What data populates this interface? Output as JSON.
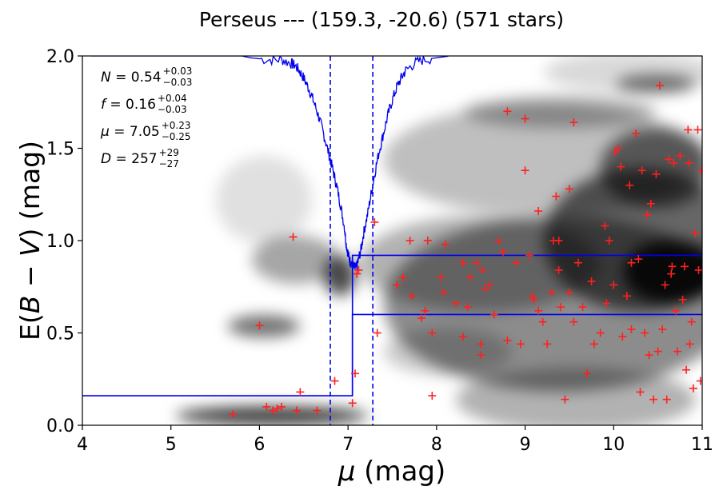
{
  "chart_data": {
    "type": "scatter",
    "title": "Perseus --- (159.3, -20.6) (571 stars)",
    "xlabel_sym": "μ",
    "xlabel_unit": " (mag)",
    "ylabel_pre": "E(",
    "ylabel_sym": "B − V",
    "ylabel_post": ") (mag)",
    "xlim": [
      4,
      11
    ],
    "ylim": [
      0,
      2
    ],
    "xticks": [
      4,
      5,
      6,
      7,
      8,
      9,
      10,
      11
    ],
    "yticks": [
      0.0,
      0.5,
      1.0,
      1.5,
      2.0
    ],
    "ytick_labels": [
      "0.0",
      "0.5",
      "1.0",
      "1.5",
      "2.0"
    ],
    "annotations": [
      {
        "sym": "N",
        "value": "0.54",
        "sup": "+0.03",
        "sub": "−0.03"
      },
      {
        "sym": "f",
        "value": "0.16",
        "sup": "+0.04",
        "sub": "−0.03"
      },
      {
        "sym": "μ",
        "value": "7.05",
        "sup": "+0.23",
        "sub": "−0.25"
      },
      {
        "sym": "D",
        "value": "257",
        "sup": "+29",
        "sub": "−27"
      }
    ],
    "colors": {
      "stars": "#ff2020",
      "model": "#0000ee",
      "background": "#000000"
    },
    "reddening_step": {
      "mu": 7.05,
      "foreground": 0.16,
      "background_low": 0.6,
      "background_high": 0.92
    },
    "mu_bounds": [
      6.8,
      7.28
    ],
    "stars": [
      [
        5.7,
        0.06
      ],
      [
        6.0,
        0.54
      ],
      [
        6.08,
        0.1
      ],
      [
        6.15,
        0.08
      ],
      [
        6.2,
        0.09
      ],
      [
        6.25,
        0.1
      ],
      [
        6.38,
        1.02
      ],
      [
        6.42,
        0.08
      ],
      [
        6.46,
        0.18
      ],
      [
        6.65,
        0.08
      ],
      [
        6.85,
        0.24
      ],
      [
        7.05,
        0.12
      ],
      [
        7.08,
        0.28
      ],
      [
        7.1,
        0.82
      ],
      [
        7.12,
        0.84
      ],
      [
        7.3,
        1.1
      ],
      [
        7.33,
        0.5
      ],
      [
        7.55,
        0.76
      ],
      [
        7.62,
        0.8
      ],
      [
        7.7,
        1.0
      ],
      [
        7.72,
        0.7
      ],
      [
        7.83,
        0.58
      ],
      [
        7.87,
        0.62
      ],
      [
        7.9,
        1.0
      ],
      [
        7.95,
        0.16
      ],
      [
        7.95,
        0.5
      ],
      [
        8.05,
        0.8
      ],
      [
        8.08,
        0.72
      ],
      [
        8.1,
        0.98
      ],
      [
        8.22,
        0.66
      ],
      [
        8.3,
        0.88
      ],
      [
        8.3,
        0.48
      ],
      [
        8.35,
        0.64
      ],
      [
        8.38,
        0.8
      ],
      [
        8.45,
        0.88
      ],
      [
        8.5,
        0.44
      ],
      [
        8.5,
        0.38
      ],
      [
        8.52,
        0.84
      ],
      [
        8.55,
        0.74
      ],
      [
        8.6,
        0.76
      ],
      [
        8.65,
        0.6
      ],
      [
        8.7,
        1.0
      ],
      [
        8.75,
        0.94
      ],
      [
        8.8,
        0.46
      ],
      [
        8.8,
        1.7
      ],
      [
        8.9,
        0.88
      ],
      [
        8.95,
        0.44
      ],
      [
        9.0,
        1.66
      ],
      [
        9.0,
        1.38
      ],
      [
        9.05,
        0.92
      ],
      [
        9.08,
        0.7
      ],
      [
        9.1,
        0.68
      ],
      [
        9.15,
        1.16
      ],
      [
        9.15,
        0.62
      ],
      [
        9.2,
        0.56
      ],
      [
        9.25,
        0.44
      ],
      [
        9.3,
        0.72
      ],
      [
        9.32,
        1.0
      ],
      [
        9.35,
        1.24
      ],
      [
        9.38,
        1.0
      ],
      [
        9.38,
        0.84
      ],
      [
        9.4,
        0.64
      ],
      [
        9.45,
        0.14
      ],
      [
        9.5,
        1.28
      ],
      [
        9.5,
        0.72
      ],
      [
        9.55,
        0.56
      ],
      [
        9.55,
        1.64
      ],
      [
        9.6,
        0.88
      ],
      [
        9.65,
        0.64
      ],
      [
        9.7,
        0.28
      ],
      [
        9.75,
        0.78
      ],
      [
        9.78,
        0.44
      ],
      [
        9.85,
        0.5
      ],
      [
        9.9,
        1.08
      ],
      [
        9.92,
        0.66
      ],
      [
        9.95,
        1.0
      ],
      [
        10.0,
        0.76
      ],
      [
        10.02,
        1.48
      ],
      [
        10.05,
        1.5
      ],
      [
        10.08,
        1.4
      ],
      [
        10.1,
        0.48
      ],
      [
        10.15,
        0.7
      ],
      [
        10.18,
        1.3
      ],
      [
        10.2,
        0.88
      ],
      [
        10.2,
        0.52
      ],
      [
        10.25,
        1.58
      ],
      [
        10.28,
        0.9
      ],
      [
        10.3,
        0.18
      ],
      [
        10.32,
        1.38
      ],
      [
        10.35,
        0.5
      ],
      [
        10.38,
        1.14
      ],
      [
        10.4,
        0.38
      ],
      [
        10.42,
        1.2
      ],
      [
        10.45,
        0.14
      ],
      [
        10.48,
        1.36
      ],
      [
        10.5,
        0.4
      ],
      [
        10.52,
        1.84
      ],
      [
        10.55,
        0.52
      ],
      [
        10.58,
        0.76
      ],
      [
        10.6,
        0.14
      ],
      [
        10.62,
        1.44
      ],
      [
        10.65,
        0.82
      ],
      [
        10.66,
        0.86
      ],
      [
        10.68,
        1.42
      ],
      [
        10.7,
        0.62
      ],
      [
        10.72,
        0.4
      ],
      [
        10.75,
        1.46
      ],
      [
        10.78,
        0.68
      ],
      [
        10.8,
        0.86
      ],
      [
        10.82,
        0.3
      ],
      [
        10.84,
        1.6
      ],
      [
        10.85,
        1.42
      ],
      [
        10.86,
        0.44
      ],
      [
        10.88,
        0.56
      ],
      [
        10.9,
        0.2
      ],
      [
        10.92,
        1.04
      ],
      [
        10.95,
        1.6
      ],
      [
        10.96,
        0.84
      ],
      [
        10.98,
        0.24
      ],
      [
        10.99,
        1.38
      ]
    ],
    "model_curve": [
      [
        4.1,
        2.0
      ],
      [
        5.8,
        2.0
      ],
      [
        5.9,
        1.99
      ],
      [
        6.1,
        1.98
      ],
      [
        6.25,
        1.98
      ],
      [
        6.35,
        1.96
      ],
      [
        6.4,
        1.95
      ],
      [
        6.45,
        1.92
      ],
      [
        6.5,
        1.88
      ],
      [
        6.55,
        1.83
      ],
      [
        6.6,
        1.77
      ],
      [
        6.65,
        1.7
      ],
      [
        6.7,
        1.62
      ],
      [
        6.75,
        1.53
      ],
      [
        6.8,
        1.44
      ],
      [
        6.84,
        1.36
      ],
      [
        6.88,
        1.28
      ],
      [
        6.92,
        1.18
      ],
      [
        6.96,
        1.07
      ],
      [
        6.98,
        0.98
      ],
      [
        7.0,
        0.93
      ],
      [
        7.02,
        0.89
      ],
      [
        7.04,
        0.88
      ],
      [
        7.06,
        0.86
      ],
      [
        7.08,
        0.85
      ],
      [
        7.1,
        0.86
      ],
      [
        7.12,
        0.9
      ],
      [
        7.15,
        0.96
      ],
      [
        7.18,
        1.05
      ],
      [
        7.22,
        1.14
      ],
      [
        7.26,
        1.25
      ],
      [
        7.3,
        1.36
      ],
      [
        7.35,
        1.48
      ],
      [
        7.4,
        1.58
      ],
      [
        7.45,
        1.68
      ],
      [
        7.5,
        1.76
      ],
      [
        7.55,
        1.83
      ],
      [
        7.6,
        1.88
      ],
      [
        7.65,
        1.92
      ],
      [
        7.75,
        1.96
      ],
      [
        7.85,
        1.98
      ],
      [
        8.0,
        1.99
      ],
      [
        8.15,
        2.0
      ]
    ]
  }
}
